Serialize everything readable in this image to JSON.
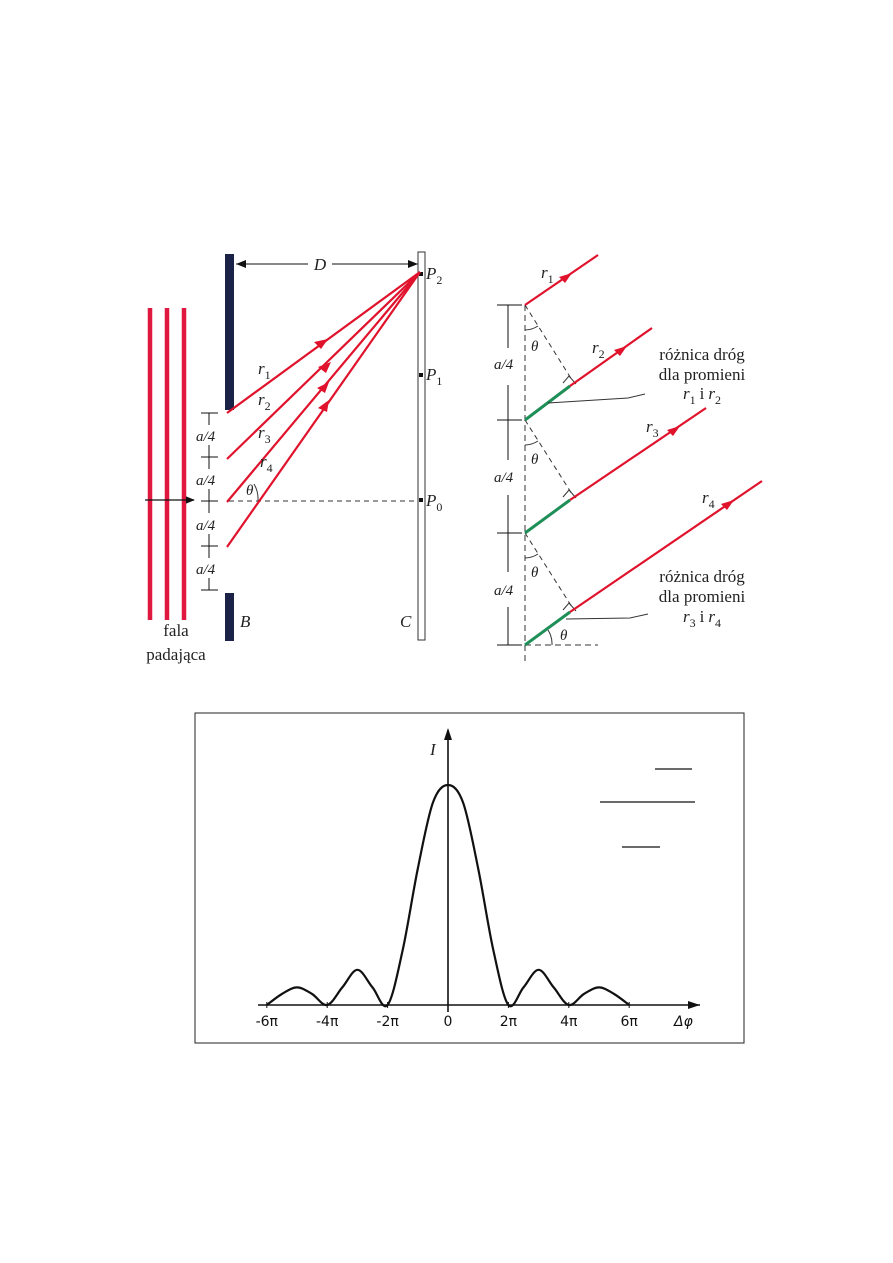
{
  "colors": {
    "ray": "#e0122c",
    "wave": "#e0173f",
    "screen_bar": "#1b2248",
    "path_diff": "#1f8f58",
    "ink": "#222222"
  },
  "left_figure": {
    "incident_wave_label": [
      "fala",
      "padająca"
    ],
    "distance_label": "D",
    "barrier_label": "B",
    "screen_label": "C",
    "points": [
      {
        "name": "P",
        "sub": "2"
      },
      {
        "name": "P",
        "sub": "1"
      },
      {
        "name": "P",
        "sub": "0"
      }
    ],
    "rays": [
      {
        "name": "r",
        "sub": "1"
      },
      {
        "name": "r",
        "sub": "2"
      },
      {
        "name": "r",
        "sub": "3"
      },
      {
        "name": "r",
        "sub": "4"
      }
    ],
    "segment_label": "a/4",
    "angle_label": "θ"
  },
  "right_figure": {
    "rays": [
      {
        "name": "r",
        "sub": "1"
      },
      {
        "name": "r",
        "sub": "2"
      },
      {
        "name": "r",
        "sub": "3"
      },
      {
        "name": "r",
        "sub": "4"
      }
    ],
    "segment_label": "a/4",
    "angle_label": "θ",
    "note_top": {
      "line1": "różnica dróg",
      "line2": "dla promieni",
      "r_a": "r",
      "sub_a": "1",
      "conj": "i",
      "r_b": "r",
      "sub_b": "2"
    },
    "note_bottom": {
      "line1": "różnica dróg",
      "line2": "dla promieni",
      "r_a": "r",
      "sub_a": "3",
      "conj": "i",
      "r_b": "r",
      "sub_b": "4"
    }
  },
  "chart_data": {
    "type": "line",
    "ylabel": "I",
    "xlabel": "Δφ",
    "x_ticks": [
      "-6π",
      "-4π",
      "-2π",
      "0",
      "2π",
      "4π",
      "6π"
    ],
    "x_tick_values": [
      -6,
      -4,
      -2,
      0,
      2,
      4,
      6
    ],
    "xlim": [
      -6.3,
      8.3
    ],
    "ylim": [
      0,
      1.15
    ],
    "x": [
      -6,
      -5.5,
      -5,
      -4.5,
      -4,
      -3.5,
      -3,
      -2.5,
      -2,
      -1.5,
      -1,
      -0.5,
      0,
      0.5,
      1,
      1.5,
      2,
      2.5,
      3,
      3.5,
      4,
      4.5,
      5,
      5.5,
      6
    ],
    "values": [
      0.0,
      0.05,
      0.08,
      0.05,
      0.0,
      0.08,
      0.16,
      0.08,
      0.0,
      0.25,
      0.62,
      0.92,
      1.0,
      0.92,
      0.62,
      0.25,
      0.0,
      0.08,
      0.16,
      0.08,
      0.0,
      0.05,
      0.08,
      0.05,
      0.0
    ]
  }
}
